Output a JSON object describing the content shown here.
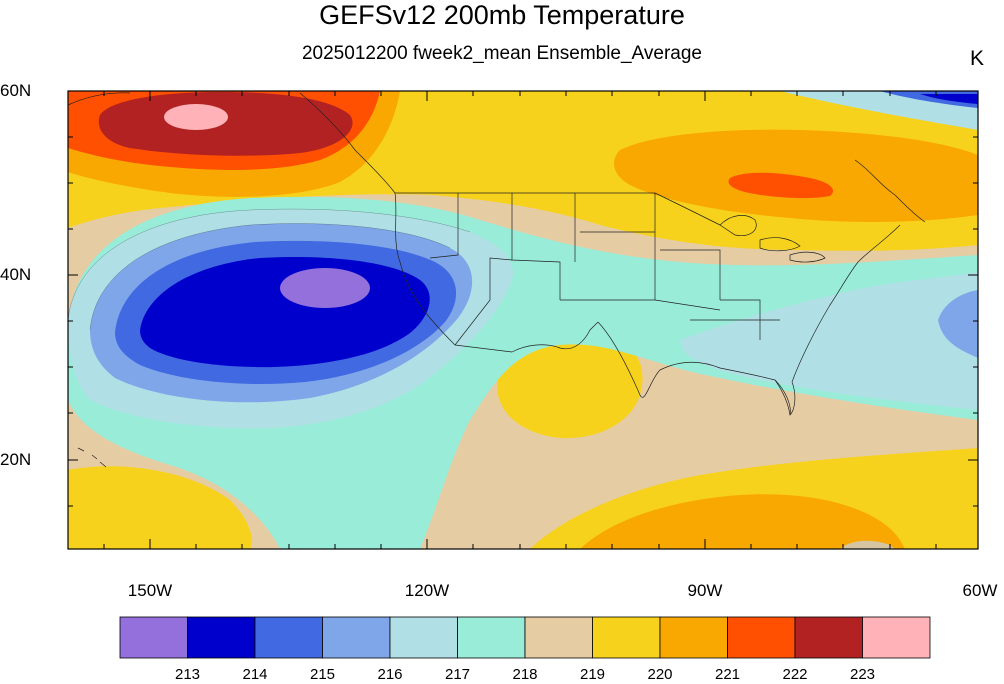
{
  "header": {
    "title": "GEFSv12 200mb Temperature",
    "subtitle": "2025012200 fweek2_mean Ensemble_Average",
    "units": "K"
  },
  "axes": {
    "lat_labels": [
      "60N",
      "40N",
      "20N"
    ],
    "lon_labels": [
      "150W",
      "120W",
      "90W",
      "60W"
    ]
  },
  "colorbar": {
    "levels": [
      "213",
      "214",
      "215",
      "216",
      "217",
      "218",
      "219",
      "220",
      "221",
      "222",
      "223"
    ],
    "colors": [
      "#9370db",
      "#0000cd",
      "#4169e1",
      "#7fa6e8",
      "#b0e0e6",
      "#99ecd8",
      "#e6cca3",
      "#f7d21c",
      "#f8a800",
      "#ff4f00",
      "#b22222",
      "#ffb3b8"
    ]
  }
}
